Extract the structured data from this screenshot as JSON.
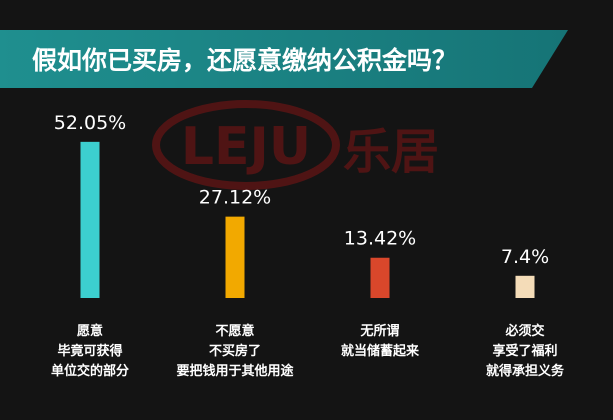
{
  "colors": {
    "background": "#141414",
    "title_band": "#1f8f8f",
    "title_band_right": "#167476",
    "watermark": "#5a1414"
  },
  "watermark": {
    "logo_text": "LEJU",
    "brand_text": "乐居"
  },
  "chart_data": {
    "type": "bar",
    "title": "假如你已买房，还愿意缴纳公积金吗？",
    "value_unit": "%",
    "ylim": [
      0,
      60
    ],
    "grid": false,
    "legend": "none",
    "categories": [
      {
        "lines": [
          "愿意",
          "毕竟可获得",
          "单位交的部分"
        ]
      },
      {
        "lines": [
          "不愿意",
          "不买房了",
          "要把钱用于其他用途"
        ]
      },
      {
        "lines": [
          "无所谓",
          "就当储蓄起来"
        ]
      },
      {
        "lines": [
          "必须交",
          "享受了福利",
          "就得承担义务"
        ]
      }
    ],
    "values": [
      52.05,
      27.12,
      13.42,
      7.4
    ],
    "value_labels": [
      "52.05%",
      "27.12%",
      "13.42%",
      "7.4%"
    ],
    "bar_colors": [
      "#3ccfcf",
      "#f2a900",
      "#d9472b",
      "#f4dcb8"
    ]
  }
}
